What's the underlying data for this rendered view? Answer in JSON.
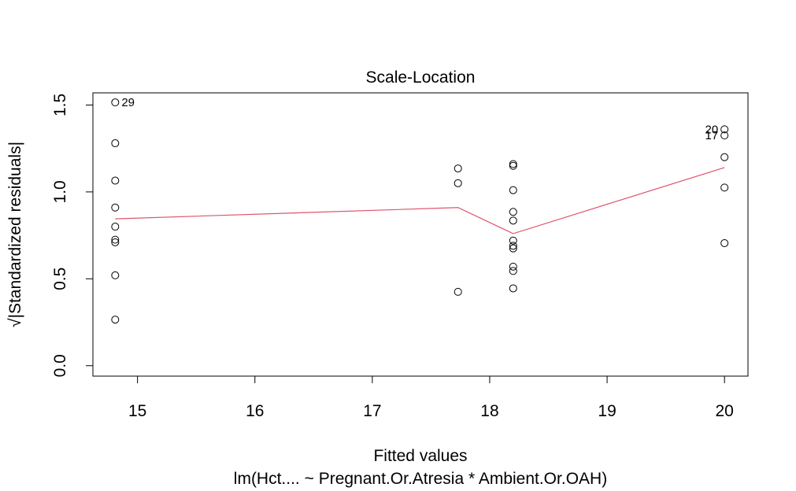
{
  "chart_data": {
    "type": "scatter",
    "title": "Scale-Location",
    "xlabel": "Fitted values",
    "xlabel_sub": "lm(Hct.... ~ Pregnant.Or.Atresia * Ambient.Or.OAH)",
    "ylabel_prefix": "√",
    "ylabel": "|Standardized residuals|",
    "xlim": [
      14.62,
      20.2
    ],
    "ylim": [
      -0.06,
      1.57
    ],
    "xticks": [
      15,
      16,
      17,
      18,
      19,
      20
    ],
    "yticks": [
      0.0,
      0.5,
      1.0,
      1.5
    ],
    "ytick_labels": [
      "0.0",
      "0.5",
      "1.0",
      "1.5"
    ],
    "grid": false,
    "points": [
      {
        "x": 14.81,
        "y": 1.515
      },
      {
        "x": 14.81,
        "y": 1.28
      },
      {
        "x": 14.81,
        "y": 1.065
      },
      {
        "x": 14.81,
        "y": 0.91
      },
      {
        "x": 14.81,
        "y": 0.8
      },
      {
        "x": 14.81,
        "y": 0.725
      },
      {
        "x": 14.81,
        "y": 0.71
      },
      {
        "x": 14.81,
        "y": 0.52
      },
      {
        "x": 14.81,
        "y": 0.265
      },
      {
        "x": 17.73,
        "y": 1.135
      },
      {
        "x": 17.73,
        "y": 1.05
      },
      {
        "x": 17.73,
        "y": 0.425
      },
      {
        "x": 18.2,
        "y": 1.16
      },
      {
        "x": 18.2,
        "y": 1.15
      },
      {
        "x": 18.2,
        "y": 1.01
      },
      {
        "x": 18.2,
        "y": 0.885
      },
      {
        "x": 18.2,
        "y": 0.835
      },
      {
        "x": 18.2,
        "y": 0.72
      },
      {
        "x": 18.2,
        "y": 0.69
      },
      {
        "x": 18.2,
        "y": 0.675
      },
      {
        "x": 18.2,
        "y": 0.57
      },
      {
        "x": 18.2,
        "y": 0.545
      },
      {
        "x": 18.2,
        "y": 0.445
      },
      {
        "x": 20.0,
        "y": 1.36
      },
      {
        "x": 20.0,
        "y": 1.325
      },
      {
        "x": 20.0,
        "y": 1.2
      },
      {
        "x": 20.0,
        "y": 1.025
      },
      {
        "x": 20.0,
        "y": 0.705
      }
    ],
    "point_labels": [
      {
        "text": "29",
        "x": 14.81,
        "y": 1.515,
        "side": "right"
      },
      {
        "text": "20",
        "x": 20.0,
        "y": 1.36,
        "side": "left"
      },
      {
        "text": "17",
        "x": 20.0,
        "y": 1.325,
        "side": "left"
      }
    ],
    "smooth_line": {
      "color": "#DF536B",
      "x": [
        14.81,
        17.73,
        18.2,
        20.0
      ],
      "y": [
        0.845,
        0.91,
        0.76,
        1.14
      ]
    }
  }
}
